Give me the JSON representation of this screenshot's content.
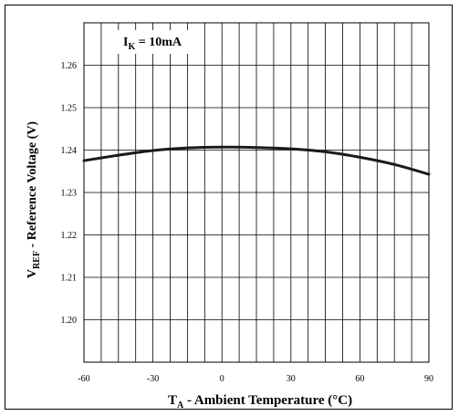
{
  "chart_data": {
    "type": "line",
    "annotation": {
      "symbol": "I",
      "subscript": "K",
      "rest": " = 10mA"
    },
    "xlabel": {
      "prefix": "T",
      "subscript": "A",
      "rest": " - Ambient Temperature (°C)"
    },
    "ylabel": {
      "prefix": "V",
      "subscript": "REF",
      "rest": " - Reference Voltage (V)"
    },
    "xlim": [
      -60,
      90
    ],
    "ylim": [
      1.19,
      1.27
    ],
    "x_ticks": [
      -60,
      -30,
      0,
      30,
      60,
      90
    ],
    "x_tick_labels": [
      "-60",
      "-30",
      "0",
      "30",
      "60",
      "90"
    ],
    "y_ticks": [
      1.2,
      1.21,
      1.22,
      1.23,
      1.24,
      1.25,
      1.26
    ],
    "y_tick_labels": [
      "1.20",
      "1.21",
      "1.22",
      "1.23",
      "1.24",
      "1.25",
      "1.26"
    ],
    "x_minor_step": 7.5,
    "y_minor_step": 0.01,
    "grid": true,
    "series": [
      {
        "x": [
          -60,
          -45,
          -30,
          -15,
          0,
          15,
          30,
          45,
          60,
          75,
          90
        ],
        "values": [
          1.2375,
          1.2388,
          1.2399,
          1.2405,
          1.2407,
          1.2406,
          1.2403,
          1.2396,
          1.2383,
          1.2366,
          1.2343
        ]
      }
    ],
    "colors": {
      "line": "#1a1a1a",
      "grid": "#000000",
      "frame": "#000000"
    }
  }
}
